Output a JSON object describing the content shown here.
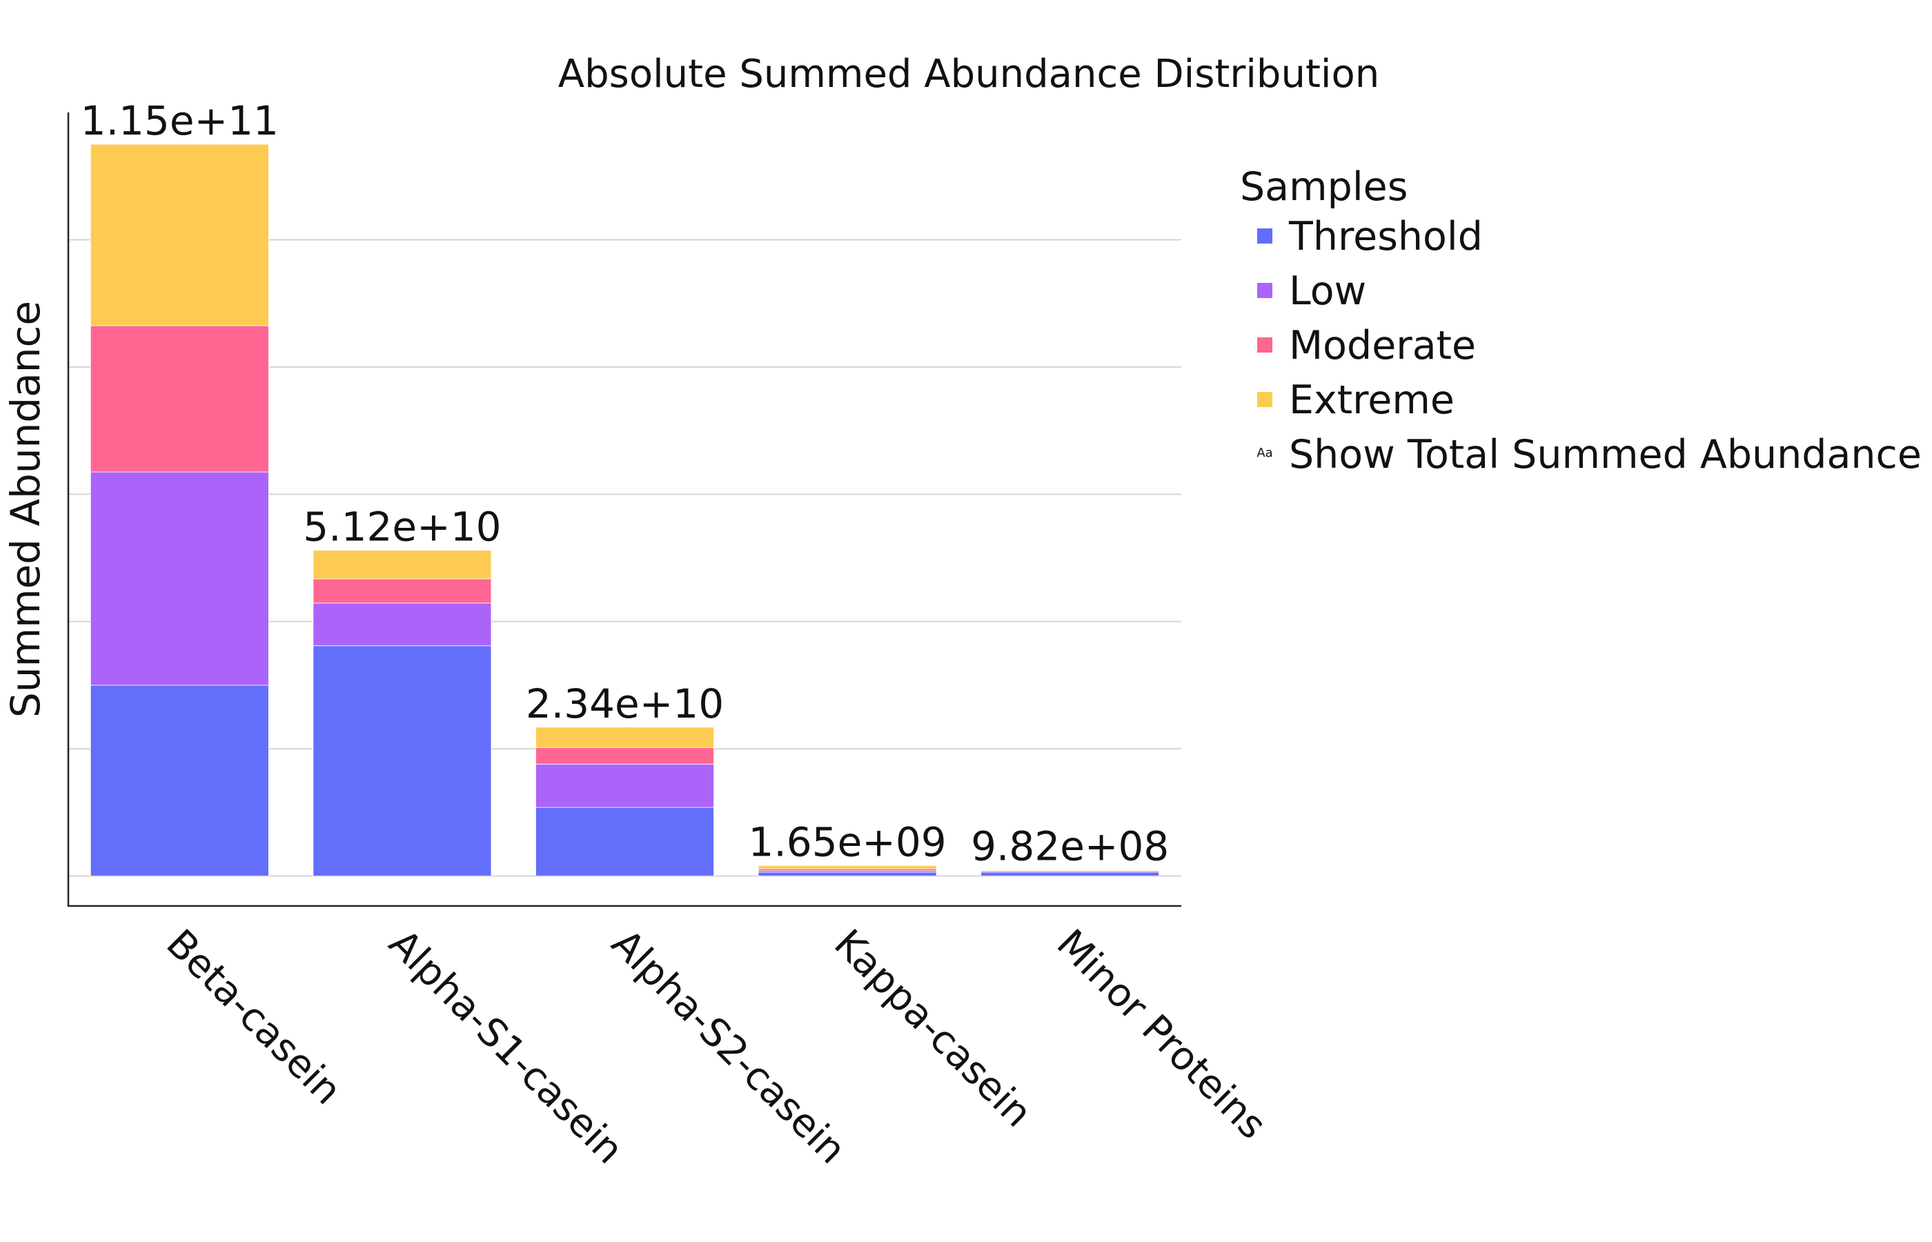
{
  "chart_data": {
    "type": "bar",
    "stacked": true,
    "title": "Absolute Summed Abundance Distribution",
    "xlabel": "",
    "ylabel": "Summed Abundance",
    "ylim": [
      -4700000000,
      120000000000
    ],
    "y_ticks_shown": false,
    "grid": true,
    "categories": [
      "Beta-casein",
      "Alpha-S1-casein",
      "Alpha-S2-casein",
      "Kappa-casein",
      "Minor Proteins"
    ],
    "series": [
      {
        "name": "Threshold",
        "color": "#636EFA",
        "values": [
          30000000000,
          36200000000,
          10800000000,
          600000000,
          600000000
        ]
      },
      {
        "name": "Low",
        "color": "#AB63FA",
        "values": [
          33500000000,
          6700000000,
          6800000000,
          250000000,
          190000000
        ]
      },
      {
        "name": "Moderate",
        "color": "#FF6692",
        "values": [
          23000000000,
          3800000000,
          2600000000,
          300000000,
          82000000
        ]
      },
      {
        "name": "Extreme",
        "color": "#FECB52",
        "values": [
          28500000000,
          4500000000,
          3200000000,
          500000000,
          110000000
        ]
      }
    ],
    "totals": [
      "1.15e+11",
      "5.12e+10",
      "2.34e+10",
      "1.65e+09",
      "9.82e+08"
    ],
    "legend": {
      "title": "Samples",
      "placement": "right",
      "extra_entry": {
        "icon": "Aa",
        "label": "Show Total Summed Abundance"
      }
    }
  }
}
